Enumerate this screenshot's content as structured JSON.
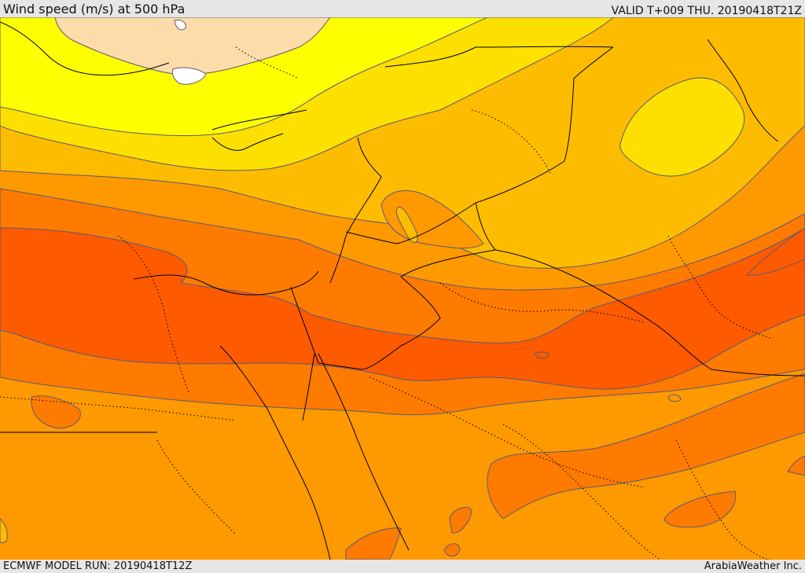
{
  "header": {
    "title": "Wind speed (m/s) at 500 hPa",
    "valid_time": "VALID T+009 THU. 20190418T21Z"
  },
  "footer": {
    "model_run": "ECMWF MODEL RUN: 20190418T12Z",
    "provider": "ArabiaWeather Inc."
  },
  "colors": {
    "band_0_5": "#ffffff",
    "band_5_10": "#fddcaa",
    "band_10_15": "#ffff00",
    "band_15_20": "#fee000",
    "band_20_25": "#febc00",
    "band_25_30": "#fe9900",
    "band_30_35": "#fe7b00",
    "band_35_40": "#fe5a00",
    "contour_line": "#5a5a7a",
    "border_line": "#000000"
  }
}
